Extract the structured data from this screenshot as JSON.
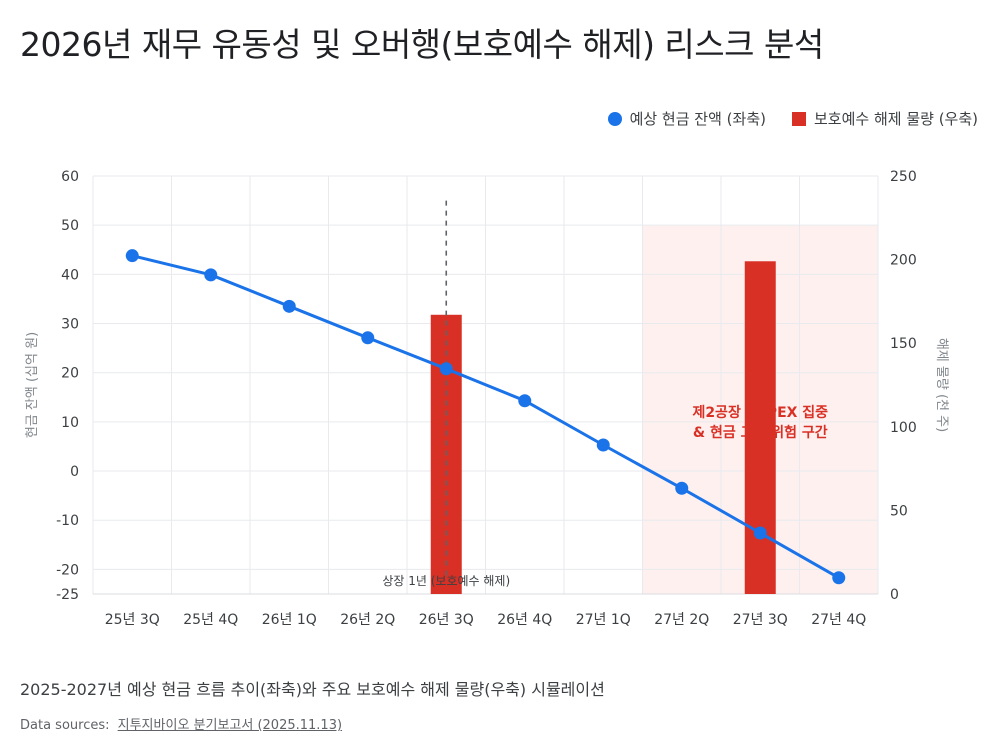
{
  "title": "2026년 재무 유동성 및 오버행(보호예수 해제) 리스크 분석",
  "caption": "2025-2027년 예상 현금 흐름 추이(좌축)와 주요 보호예수 해제 물량(우축) 시뮬레이션",
  "sources": {
    "label": "Data sources:",
    "link_text": "지투지바이오 분기보고서 (2025.11.13)"
  },
  "colors": {
    "line": "#1a73e8",
    "bar": "#d93025",
    "risk_zone": "#fdf0ef",
    "risk_text": "#d93025",
    "grid": "#e8eaed",
    "axis_text": "#3c4043",
    "axis_label": "#80868b"
  },
  "chart_data": {
    "type": "line",
    "title": "2026년 재무 유동성 및 오버행(보호예수 해제) 리스크 분석",
    "categories": [
      "25년 3Q",
      "25년 4Q",
      "26년 1Q",
      "26년 2Q",
      "26년 3Q",
      "26년 4Q",
      "27년 1Q",
      "27년 2Q",
      "27년 3Q",
      "27년 4Q"
    ],
    "ylabel_left": "현금 잔액 (십억 원)",
    "ylabel_right": "해제 물량 (천 주)",
    "ylim_left": [
      -25,
      60
    ],
    "yticks_left": [
      -25,
      -20,
      -10,
      0,
      10,
      20,
      30,
      40,
      50,
      60
    ],
    "ylim_right": [
      0,
      250
    ],
    "yticks_right": [
      0,
      50,
      100,
      150,
      200,
      250
    ],
    "grid": true,
    "legend_position": "top-right",
    "series": [
      {
        "name": "예상 현금 잔액 (좌축)",
        "type": "line",
        "axis": "left",
        "values": [
          43.8,
          39.9,
          33.5,
          27.1,
          20.8,
          14.3,
          5.3,
          -3.5,
          -12.6,
          -21.7
        ]
      },
      {
        "name": "보호예수 해제 물량 (우축)",
        "type": "bar",
        "axis": "right",
        "bars": [
          {
            "category": "26년 3Q",
            "value": 167
          },
          {
            "category": "27년 3Q",
            "value": 199
          }
        ]
      }
    ],
    "annotations": {
      "lockup_marker": {
        "category": "26년 3Q",
        "label": "상장 1년 (보호예수 해제)"
      },
      "risk_zone": {
        "from": "27년 2Q",
        "to": "27년 4Q",
        "label_line1": "제2공장 CAPEX 집중",
        "label_line2": "& 현금 고갈 위험 구간"
      }
    }
  }
}
